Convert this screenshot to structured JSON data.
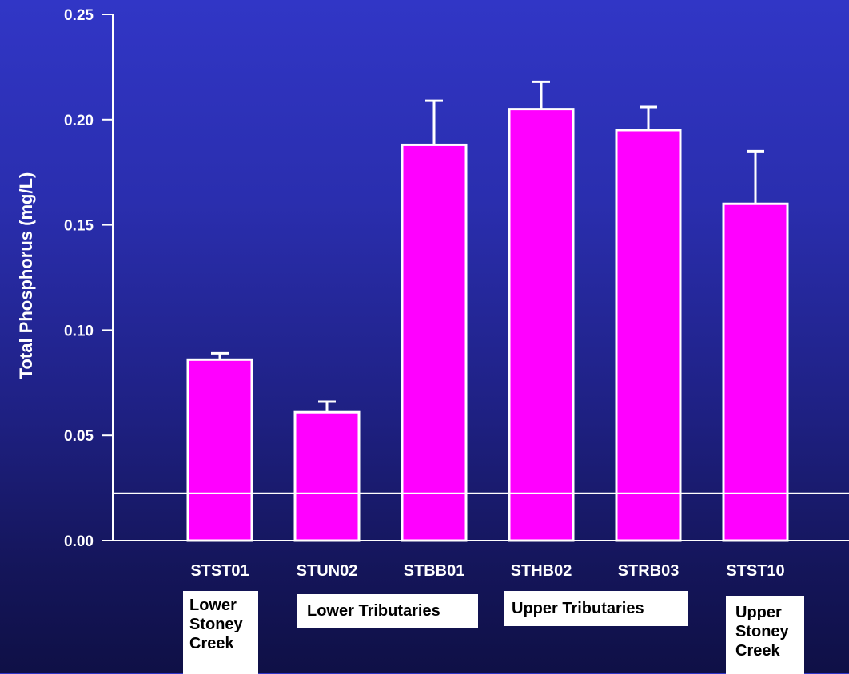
{
  "chart_data": {
    "type": "bar",
    "ylabel": "Total Phosphorus (mg/L)",
    "xlabel": "",
    "ylim": [
      0,
      0.25
    ],
    "yticks": [
      "0.00",
      "0.05",
      "0.10",
      "0.15",
      "0.20",
      "0.25"
    ],
    "yticks_values": [
      0,
      0.05,
      0.1,
      0.15,
      0.2,
      0.25
    ],
    "categories": [
      "STST01",
      "STUN02",
      "STBB01",
      "STHB02",
      "STRB03",
      "STST10"
    ],
    "values": [
      0.086,
      0.061,
      0.188,
      0.205,
      0.195,
      0.16
    ],
    "error_upper": [
      0.089,
      0.066,
      0.209,
      0.218,
      0.206,
      0.185
    ],
    "reference_line": 0.0225,
    "grid": false,
    "colors": {
      "bar_fill": "#ff00ff",
      "bar_stroke": "#ffffff",
      "axis": "#ffffff",
      "text": "#ffffff"
    }
  },
  "groups": [
    {
      "lines": [
        "Lower",
        "Stoney",
        "Creek"
      ]
    },
    {
      "lines": [
        "Lower Tributaries"
      ]
    },
    {
      "lines": [
        "Upper Tributaries"
      ]
    },
    {
      "lines": [
        "Upper",
        "Stoney",
        "Creek"
      ]
    }
  ]
}
